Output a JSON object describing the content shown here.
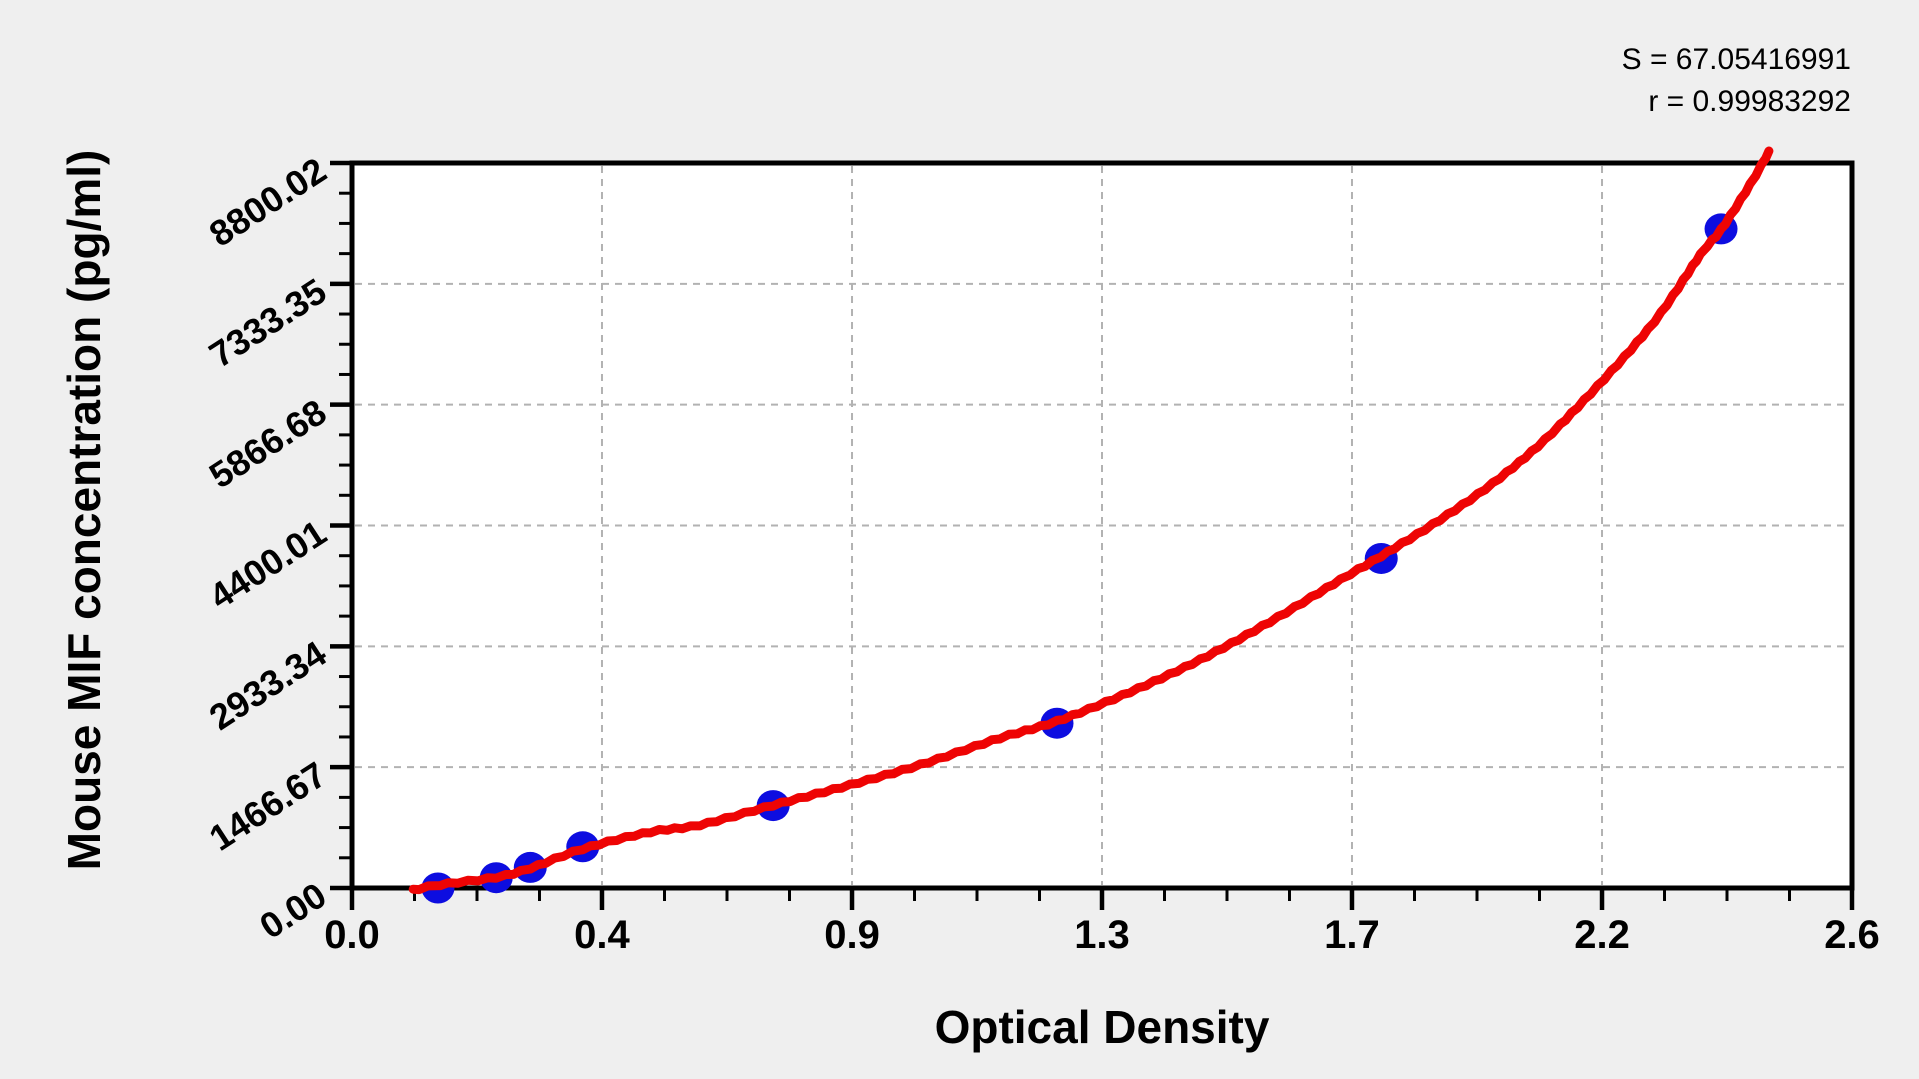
{
  "page": {
    "background": "#efefef",
    "plot_background": "#ffffff"
  },
  "annotations": {
    "s_line": "S = 67.05416991",
    "r_line": "r = 0.99983292"
  },
  "chart_data": {
    "type": "scatter",
    "title": "",
    "xlabel": "Optical Density",
    "ylabel": "Mouse MIF concentration (pg/ml)",
    "xlim": [
      0,
      2.6
    ],
    "ylim": [
      0,
      8800.02
    ],
    "x_ticks": {
      "values": [
        0,
        0.4333,
        0.8667,
        1.3,
        1.7333,
        2.1667,
        2.6
      ],
      "labels": [
        "0.0",
        "0.4",
        "0.9",
        "1.3",
        "1.7",
        "2.2",
        "2.6"
      ]
    },
    "y_ticks": {
      "values": [
        0,
        1466.67,
        2933.34,
        4400.01,
        5866.68,
        7333.35,
        8800.02
      ],
      "labels": [
        "0.00",
        "1466.67",
        "2933.34",
        "4400.01",
        "5866.68",
        "7333.35",
        "8800.02"
      ]
    },
    "minor_ticks_between_majors": 3,
    "grid": {
      "show": true,
      "style": "dashed",
      "on": "major-ticks",
      "color": "#b2b2b2"
    },
    "axis_color": "#000000",
    "legend": "none",
    "series": [
      {
        "name": "standard-points",
        "type": "scatter",
        "color": "#0d0de0",
        "marker": "circle",
        "points": [
          {
            "od": 0.149,
            "conc": 0
          },
          {
            "od": 0.25,
            "conc": 125
          },
          {
            "od": 0.309,
            "conc": 250
          },
          {
            "od": 0.4,
            "conc": 500
          },
          {
            "od": 0.73,
            "conc": 1000
          },
          {
            "od": 1.222,
            "conc": 2000
          },
          {
            "od": 1.784,
            "conc": 4000
          },
          {
            "od": 2.373,
            "conc": 8000
          }
        ]
      },
      {
        "name": "fitted-curve",
        "type": "line",
        "color": "#ee0404",
        "points": [
          [
            0.106,
            -25
          ],
          [
            0.153,
            40
          ],
          [
            0.25,
            130
          ],
          [
            0.309,
            240
          ],
          [
            0.4,
            475
          ],
          [
            0.517,
            680
          ],
          [
            0.603,
            765
          ],
          [
            0.73,
            1005
          ],
          [
            0.863,
            1250
          ],
          [
            0.985,
            1495
          ],
          [
            1.123,
            1820
          ],
          [
            1.222,
            2025
          ],
          [
            1.349,
            2380
          ],
          [
            1.47,
            2770
          ],
          [
            1.591,
            3230
          ],
          [
            1.713,
            3740
          ],
          [
            1.784,
            4030
          ],
          [
            1.886,
            4470
          ],
          [
            1.99,
            4980
          ],
          [
            2.094,
            5620
          ],
          [
            2.246,
            6775
          ],
          [
            2.337,
            7685
          ],
          [
            2.373,
            7990
          ],
          [
            2.423,
            8535
          ],
          [
            2.456,
            8935
          ]
        ]
      }
    ]
  }
}
